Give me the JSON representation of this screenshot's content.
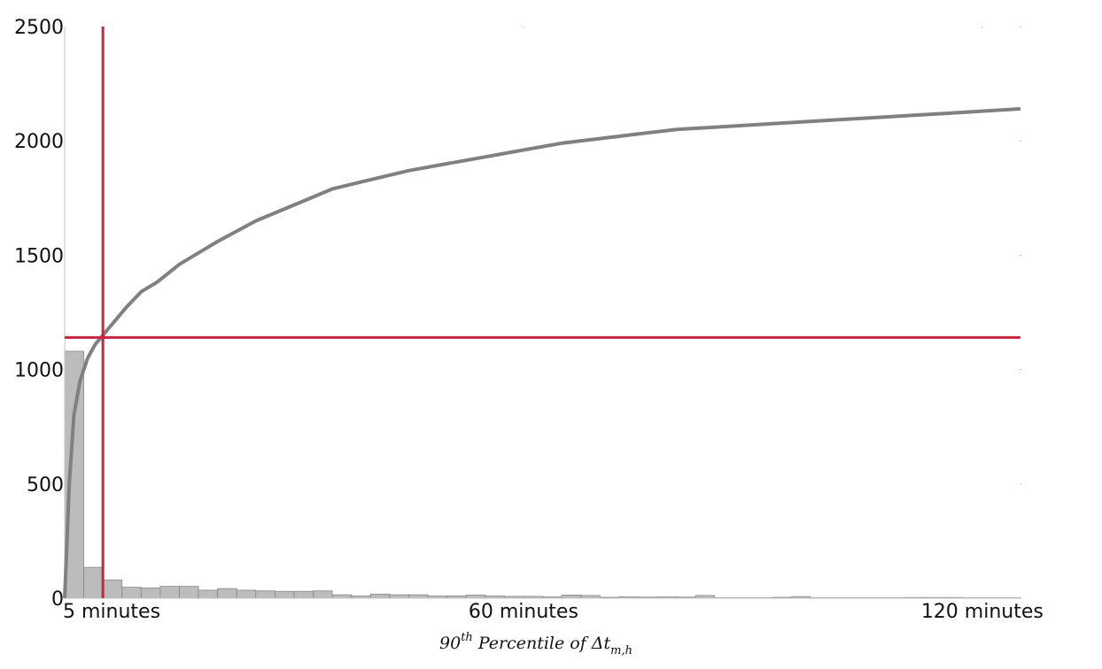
{
  "chart_data": {
    "type": "bar",
    "xlabel": {
      "base": "90",
      "sup": "th",
      "text": "Percentile of Δt",
      "sub": "m,h"
    },
    "ylim": [
      0,
      2500
    ],
    "y_ticks": [
      0,
      500,
      1000,
      1500,
      2000,
      2500
    ],
    "x_range_minutes": [
      0,
      125
    ],
    "x_ticks": [
      {
        "x": 5,
        "label": "5 minutes"
      },
      {
        "x": 60,
        "label": "60 minutes"
      },
      {
        "x": 120,
        "label": "120 minutes"
      }
    ],
    "grid": false,
    "histogram": {
      "bin_width_minutes": 2.5,
      "bins_start": 0,
      "values": [
        1080,
        135,
        80,
        48,
        45,
        52,
        52,
        35,
        42,
        35,
        32,
        30,
        30,
        32,
        15,
        10,
        18,
        15,
        15,
        10,
        10,
        14,
        10,
        8,
        8,
        6,
        14,
        12,
        4,
        6,
        5,
        6,
        5,
        12,
        2,
        2,
        2,
        4,
        7,
        2,
        2,
        2,
        2,
        2,
        3,
        3,
        3,
        2,
        2,
        2
      ]
    },
    "cumulative_curve": {
      "x": [
        0,
        0.6,
        1.2,
        2,
        3,
        4,
        5,
        6,
        8,
        10,
        12,
        15,
        18,
        20,
        25,
        30,
        35,
        40,
        45,
        50,
        55,
        60,
        65,
        70,
        75,
        80,
        85,
        90,
        95,
        100,
        105,
        110,
        115,
        120,
        125
      ],
      "y": [
        0,
        500,
        800,
        950,
        1050,
        1110,
        1150,
        1190,
        1270,
        1340,
        1380,
        1460,
        1520,
        1560,
        1650,
        1720,
        1790,
        1830,
        1870,
        1900,
        1930,
        1960,
        1990,
        2010,
        2030,
        2050,
        2060,
        2070,
        2080,
        2090,
        2100,
        2110,
        2120,
        2130,
        2140
      ]
    },
    "reference_lines": {
      "vertical_x": 5,
      "horizontal_y": 1140
    },
    "colors": {
      "bars": "#bcbcbc",
      "bar_edge": "#888888",
      "curve": "#808080",
      "reference": "#c8253f",
      "axis": "#c4c4c4"
    }
  }
}
